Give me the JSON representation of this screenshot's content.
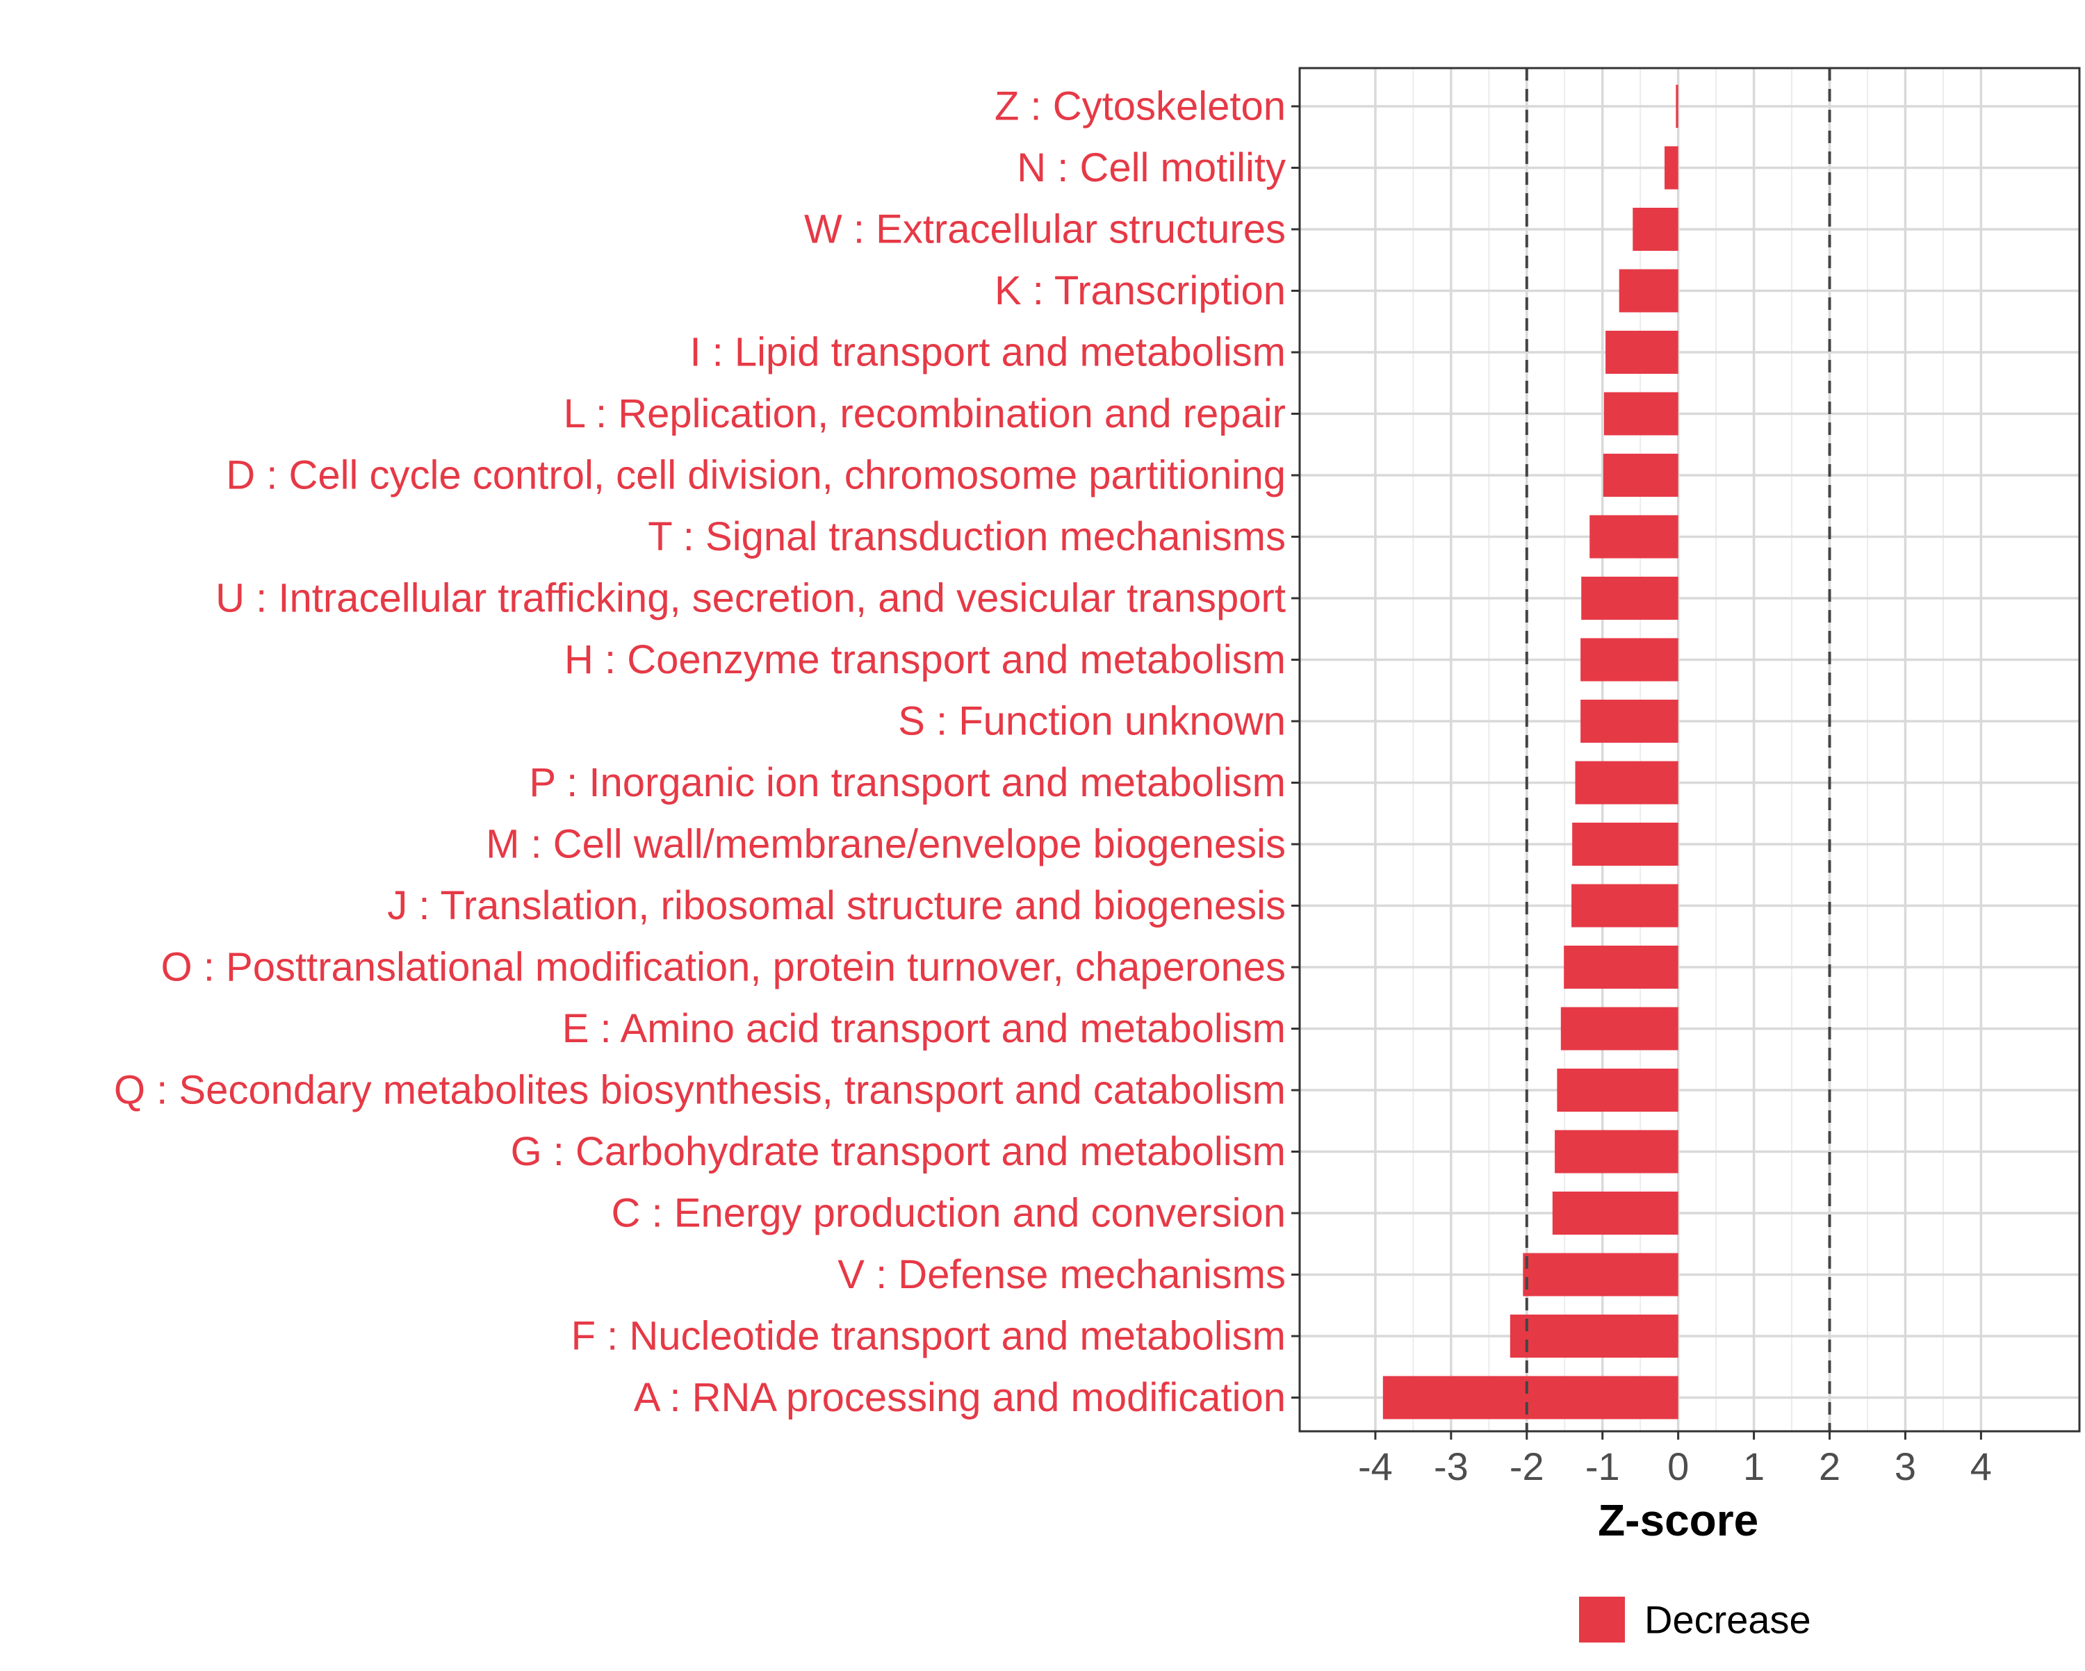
{
  "chart_data": {
    "type": "bar",
    "orientation": "horizontal",
    "xlabel": "Z-score",
    "ylabel": "",
    "xlim": [
      -5.0,
      5.3
    ],
    "xticks": [
      "-4",
      "-3",
      "-2",
      "-1",
      "0",
      "1",
      "2",
      "3",
      "4"
    ],
    "reference_lines": [
      -2,
      2
    ],
    "grid": true,
    "legend_position": "bottom",
    "categories": [
      "Z : Cytoskeleton",
      "N : Cell motility",
      "W : Extracellular structures",
      "K : Transcription",
      "I : Lipid transport and metabolism",
      "L : Replication, recombination and repair",
      "D : Cell cycle control, cell division, chromosome partitioning",
      "T : Signal transduction mechanisms",
      "U : Intracellular trafficking, secretion, and vesicular transport",
      "H : Coenzyme transport and metabolism",
      "S : Function unknown",
      "P : Inorganic ion transport and metabolism",
      "M : Cell wall/membrane/envelope biogenesis",
      "J : Translation, ribosomal structure and biogenesis",
      "O : Posttranslational modification, protein turnover, chaperones",
      "E : Amino acid transport and metabolism",
      "Q : Secondary metabolites biosynthesis, transport and catabolism",
      "G : Carbohydrate transport and metabolism",
      "C : Energy production and conversion",
      "V : Defense mechanisms",
      "F : Nucleotide transport and metabolism",
      "A : RNA processing and modification"
    ],
    "series": [
      {
        "name": "Decrease",
        "color": "#e63946",
        "values": [
          -0.03,
          -0.18,
          -0.6,
          -0.78,
          -0.96,
          -0.98,
          -0.99,
          -1.17,
          -1.28,
          -1.29,
          -1.29,
          -1.36,
          -1.4,
          -1.41,
          -1.51,
          -1.55,
          -1.6,
          -1.63,
          -1.66,
          -2.05,
          -2.22,
          -3.9
        ]
      }
    ],
    "colors": {
      "bar": "#e63946",
      "label_text": "#e63946",
      "grid": "#d9d9d9",
      "border": "#333333",
      "reference_line": "#444444"
    }
  }
}
